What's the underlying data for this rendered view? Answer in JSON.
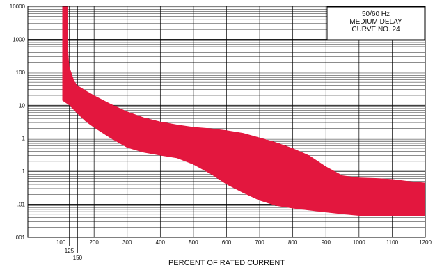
{
  "chart_data": {
    "type": "area",
    "title_lines": [
      "50/60 Hz",
      "MEDIUM DELAY",
      "CURVE NO. 24"
    ],
    "xlabel": "PERCENT OF RATED CURRENT",
    "ylabel": "",
    "xlim": [
      0,
      1200
    ],
    "ylim": [
      0.001,
      10000
    ],
    "yscale": "log",
    "grid": true,
    "legend_position": "top-right",
    "band_color": "#E3173E",
    "x_ticks": [
      {
        "value": 100,
        "label": "100",
        "drop": 0
      },
      {
        "value": 125,
        "label": "125",
        "drop": 1
      },
      {
        "value": 150,
        "label": "150",
        "drop": 2
      },
      {
        "value": 200,
        "label": "200",
        "drop": 0
      },
      {
        "value": 300,
        "label": "300",
        "drop": 0
      },
      {
        "value": 400,
        "label": "400",
        "drop": 0
      },
      {
        "value": 500,
        "label": "500",
        "drop": 0
      },
      {
        "value": 600,
        "label": "600",
        "drop": 0
      },
      {
        "value": 700,
        "label": "700",
        "drop": 0
      },
      {
        "value": 800,
        "label": "800",
        "drop": 0
      },
      {
        "value": 900,
        "label": "900",
        "drop": 0
      },
      {
        "value": 1000,
        "label": "1000",
        "drop": 0
      },
      {
        "value": 1100,
        "label": "1100",
        "drop": 0
      },
      {
        "value": 1200,
        "label": "1200",
        "drop": 0
      }
    ],
    "y_ticks": [
      {
        "value": 10000,
        "label": "10000"
      },
      {
        "value": 1000,
        "label": "1000"
      },
      {
        "value": 100,
        "label": "100"
      },
      {
        "value": 10,
        "label": "10"
      },
      {
        "value": 1,
        "label": "1"
      },
      {
        "value": 0.1,
        "label": ".1"
      },
      {
        "value": 0.01,
        "label": ".01"
      },
      {
        "value": 0.001,
        "label": ".001"
      }
    ],
    "series": [
      {
        "role": "upper",
        "x": [
          104,
          120,
          122,
          125,
          140,
          150,
          175,
          200,
          250,
          300,
          350,
          400,
          450,
          500,
          550,
          600,
          650,
          700,
          750,
          800,
          850,
          900,
          950,
          1000,
          1050,
          1100,
          1150,
          1200
        ],
        "y": [
          10000,
          10000,
          400,
          150,
          55,
          40,
          28,
          20,
          11,
          6.5,
          4.3,
          3.2,
          2.6,
          2.2,
          2.0,
          1.75,
          1.45,
          1.05,
          0.75,
          0.5,
          0.3,
          0.14,
          0.075,
          0.064,
          0.062,
          0.058,
          0.05,
          0.045
        ]
      },
      {
        "role": "lower",
        "x": [
          104,
          125,
          150,
          175,
          200,
          250,
          300,
          350,
          400,
          450,
          500,
          550,
          600,
          650,
          700,
          750,
          800,
          850,
          900,
          950,
          1000,
          1050,
          1100,
          1150,
          1200
        ],
        "y": [
          14,
          10,
          5.5,
          3.2,
          2.1,
          1.0,
          0.52,
          0.37,
          0.3,
          0.25,
          0.16,
          0.085,
          0.04,
          0.022,
          0.013,
          0.009,
          0.0075,
          0.0065,
          0.0057,
          0.005,
          0.0045,
          0.0045,
          0.0045,
          0.0045,
          0.0045
        ]
      }
    ]
  }
}
